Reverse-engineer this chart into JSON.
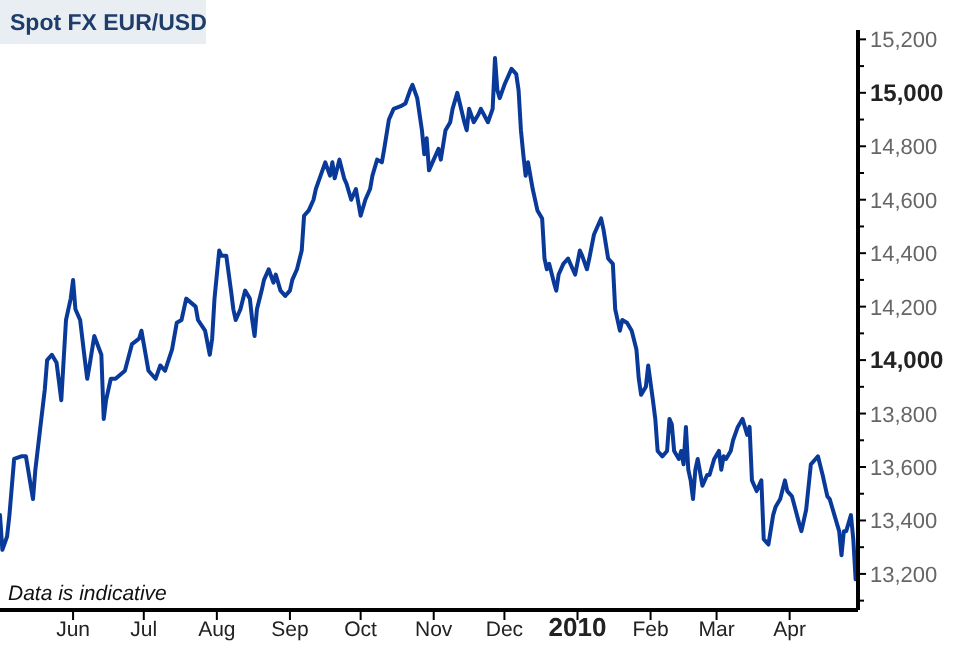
{
  "chart_data": {
    "type": "line",
    "title": "Spot FX EUR/USD",
    "annotations": [
      "Data is indicative"
    ],
    "xlim": [
      "2009-05-01",
      "2010-04-30"
    ],
    "xticks": [
      {
        "value": "2009-06-01",
        "label": "Jun"
      },
      {
        "value": "2009-07-01",
        "label": "Jul"
      },
      {
        "value": "2009-08-01",
        "label": "Aug"
      },
      {
        "value": "2009-09-01",
        "label": "Sep"
      },
      {
        "value": "2009-10-01",
        "label": "Oct"
      },
      {
        "value": "2009-11-01",
        "label": "Nov"
      },
      {
        "value": "2009-12-01",
        "label": "Dec"
      },
      {
        "value": "2010-01-01",
        "label": "2010"
      },
      {
        "value": "2010-02-01",
        "label": "Feb"
      },
      {
        "value": "2010-03-01",
        "label": "Mar"
      },
      {
        "value": "2010-04-01",
        "label": "Apr"
      }
    ],
    "ylim": [
      13065,
      15235
    ],
    "yticks": [
      {
        "value": 13100,
        "label": null
      },
      {
        "value": 13200,
        "label": "13,200"
      },
      {
        "value": 13300,
        "label": null
      },
      {
        "value": 13400,
        "label": "13,400"
      },
      {
        "value": 13500,
        "label": null
      },
      {
        "value": 13600,
        "label": "13,600"
      },
      {
        "value": 13700,
        "label": null
      },
      {
        "value": 13800,
        "label": "13,800"
      },
      {
        "value": 13900,
        "label": null
      },
      {
        "value": 14000,
        "label": "14,000"
      },
      {
        "value": 14100,
        "label": null
      },
      {
        "value": 14200,
        "label": "14,200"
      },
      {
        "value": 14300,
        "label": null
      },
      {
        "value": 14400,
        "label": "14,400"
      },
      {
        "value": 14500,
        "label": null
      },
      {
        "value": 14600,
        "label": "14,600"
      },
      {
        "value": 14700,
        "label": null
      },
      {
        "value": 14800,
        "label": "14,800"
      },
      {
        "value": 14900,
        "label": null
      },
      {
        "value": 15000,
        "label": "15,000"
      },
      {
        "value": 15100,
        "label": null
      },
      {
        "value": 15200,
        "label": "15,200"
      }
    ],
    "series": [
      {
        "color": "#0a3a99",
        "x": [
          "2009-05-01",
          "2009-05-02",
          "2009-05-04",
          "2009-05-05",
          "2009-05-07",
          "2009-05-10",
          "2009-05-12",
          "2009-05-15",
          "2009-05-16",
          "2009-05-18",
          "2009-05-20",
          "2009-05-21",
          "2009-05-23",
          "2009-05-25",
          "2009-05-27",
          "2009-05-29",
          "2009-05-31",
          "2009-06-01",
          "2009-06-02",
          "2009-06-04",
          "2009-06-06",
          "2009-06-07",
          "2009-06-08",
          "2009-06-10",
          "2009-06-13",
          "2009-06-14",
          "2009-06-15",
          "2009-06-17",
          "2009-06-19",
          "2009-06-23",
          "2009-06-26",
          "2009-06-29",
          "2009-06-30",
          "2009-07-03",
          "2009-07-06",
          "2009-07-08",
          "2009-07-10",
          "2009-07-13",
          "2009-07-15",
          "2009-07-17",
          "2009-07-19",
          "2009-07-23",
          "2009-07-24",
          "2009-07-27",
          "2009-07-29",
          "2009-07-30",
          "2009-07-31",
          "2009-08-02",
          "2009-08-03",
          "2009-08-05",
          "2009-08-07",
          "2009-08-08",
          "2009-08-09",
          "2009-08-11",
          "2009-08-13",
          "2009-08-15",
          "2009-08-16",
          "2009-08-17",
          "2009-08-18",
          "2009-08-20",
          "2009-08-21",
          "2009-08-23",
          "2009-08-25",
          "2009-08-26",
          "2009-08-28",
          "2009-08-30",
          "2009-09-01",
          "2009-09-02",
          "2009-09-04",
          "2009-09-06",
          "2009-09-07",
          "2009-09-09",
          "2009-09-11",
          "2009-09-12",
          "2009-09-14",
          "2009-09-16",
          "2009-09-18",
          "2009-09-19",
          "2009-09-20",
          "2009-09-22",
          "2009-09-24",
          "2009-09-25",
          "2009-09-27",
          "2009-09-29",
          "2009-10-01",
          "2009-10-03",
          "2009-10-05",
          "2009-10-06",
          "2009-10-08",
          "2009-10-10",
          "2009-10-11",
          "2009-10-13",
          "2009-10-15",
          "2009-10-18",
          "2009-10-20",
          "2009-10-22",
          "2009-10-23",
          "2009-10-25",
          "2009-10-27",
          "2009-10-28",
          "2009-10-29",
          "2009-10-30",
          "2009-11-01",
          "2009-11-03",
          "2009-11-04",
          "2009-11-06",
          "2009-11-08",
          "2009-11-09",
          "2009-11-11",
          "2009-11-14",
          "2009-11-15",
          "2009-11-16",
          "2009-11-18",
          "2009-11-20",
          "2009-11-21",
          "2009-11-24",
          "2009-11-26",
          "2009-11-27",
          "2009-11-28",
          "2009-11-29",
          "2009-12-01",
          "2009-12-04",
          "2009-12-06",
          "2009-12-07",
          "2009-12-08",
          "2009-12-09",
          "2009-12-10",
          "2009-12-11",
          "2009-12-13",
          "2009-12-15",
          "2009-12-17",
          "2009-12-18",
          "2009-12-19",
          "2009-12-20",
          "2009-12-22",
          "2009-12-23",
          "2009-12-24",
          "2009-12-26",
          "2009-12-28",
          "2009-12-30",
          "2009-12-31",
          "2010-01-02",
          "2010-01-03",
          "2010-01-05",
          "2010-01-06",
          "2010-01-08",
          "2010-01-10",
          "2010-01-11",
          "2010-01-12",
          "2010-01-14",
          "2010-01-16",
          "2010-01-17",
          "2010-01-19",
          "2010-01-20",
          "2010-01-22",
          "2010-01-24",
          "2010-01-26",
          "2010-01-27",
          "2010-01-28",
          "2010-01-30",
          "2010-01-31",
          "2010-02-02",
          "2010-02-03",
          "2010-02-04",
          "2010-02-06",
          "2010-02-08",
          "2010-02-09",
          "2010-02-10",
          "2010-02-11",
          "2010-02-13",
          "2010-02-14",
          "2010-02-15",
          "2010-02-16",
          "2010-02-17",
          "2010-02-18",
          "2010-02-19",
          "2010-02-20",
          "2010-02-21",
          "2010-02-23",
          "2010-02-25",
          "2010-02-26",
          "2010-02-28",
          "2010-03-02",
          "2010-03-03",
          "2010-03-04",
          "2010-03-05",
          "2010-03-07",
          "2010-03-08",
          "2010-03-10",
          "2010-03-12",
          "2010-03-14",
          "2010-03-15",
          "2010-03-16",
          "2010-03-18",
          "2010-03-20",
          "2010-03-21",
          "2010-03-23",
          "2010-03-25",
          "2010-03-26",
          "2010-03-28",
          "2010-03-30",
          "2010-03-31",
          "2010-04-02",
          "2010-04-05",
          "2010-04-06",
          "2010-04-08",
          "2010-04-10",
          "2010-04-12",
          "2010-04-13",
          "2010-04-15",
          "2010-04-17",
          "2010-04-18",
          "2010-04-20",
          "2010-04-22",
          "2010-04-23",
          "2010-04-24",
          "2010-04-25",
          "2010-04-27",
          "2010-04-28",
          "2010-04-29",
          "2010-04-30"
        ],
        "values": [
          13420,
          13290,
          13340,
          13420,
          13630,
          13640,
          13640,
          13480,
          13590,
          13740,
          13890,
          14000,
          14020,
          13990,
          13850,
          14150,
          14230,
          14300,
          14190,
          14150,
          14000,
          13930,
          13980,
          14090,
          14020,
          13780,
          13850,
          13930,
          13930,
          13960,
          14060,
          14080,
          14110,
          13960,
          13930,
          13980,
          13960,
          14040,
          14140,
          14150,
          14230,
          14200,
          14150,
          14110,
          14020,
          14080,
          14230,
          14410,
          14390,
          14390,
          14260,
          14190,
          14150,
          14190,
          14260,
          14230,
          14150,
          14090,
          14190,
          14260,
          14300,
          14340,
          14290,
          14320,
          14260,
          14240,
          14260,
          14300,
          14340,
          14410,
          14540,
          14560,
          14600,
          14640,
          14690,
          14740,
          14690,
          14740,
          14680,
          14750,
          14680,
          14660,
          14600,
          14640,
          14540,
          14600,
          14640,
          14690,
          14750,
          14740,
          14790,
          14900,
          14940,
          14950,
          14960,
          15010,
          15030,
          14980,
          14860,
          14770,
          14830,
          14710,
          14750,
          14790,
          14750,
          14860,
          14890,
          14940,
          15000,
          14890,
          14860,
          14940,
          14890,
          14920,
          14940,
          14890,
          14940,
          15130,
          15010,
          14980,
          15030,
          15090,
          15070,
          15010,
          14860,
          14770,
          14690,
          14740,
          14640,
          14560,
          14530,
          14380,
          14340,
          14360,
          14290,
          14260,
          14320,
          14360,
          14380,
          14340,
          14320,
          14410,
          14390,
          14340,
          14380,
          14470,
          14510,
          14530,
          14490,
          14380,
          14360,
          14190,
          14110,
          14150,
          14140,
          14110,
          14040,
          13930,
          13870,
          13900,
          13980,
          13850,
          13780,
          13660,
          13640,
          13660,
          13780,
          13760,
          13660,
          13630,
          13660,
          13610,
          13750,
          13590,
          13550,
          13480,
          13590,
          13630,
          13530,
          13570,
          13570,
          13630,
          13660,
          13590,
          13640,
          13630,
          13660,
          13700,
          13750,
          13780,
          13720,
          13750,
          13550,
          13510,
          13550,
          13330,
          13310,
          13420,
          13450,
          13480,
          13550,
          13510,
          13490,
          13390,
          13360,
          13440,
          13610,
          13630,
          13640,
          13570,
          13490,
          13480,
          13420,
          13360,
          13270,
          13360,
          13360,
          13420,
          13330,
          13180,
          13250
        ]
      }
    ]
  }
}
